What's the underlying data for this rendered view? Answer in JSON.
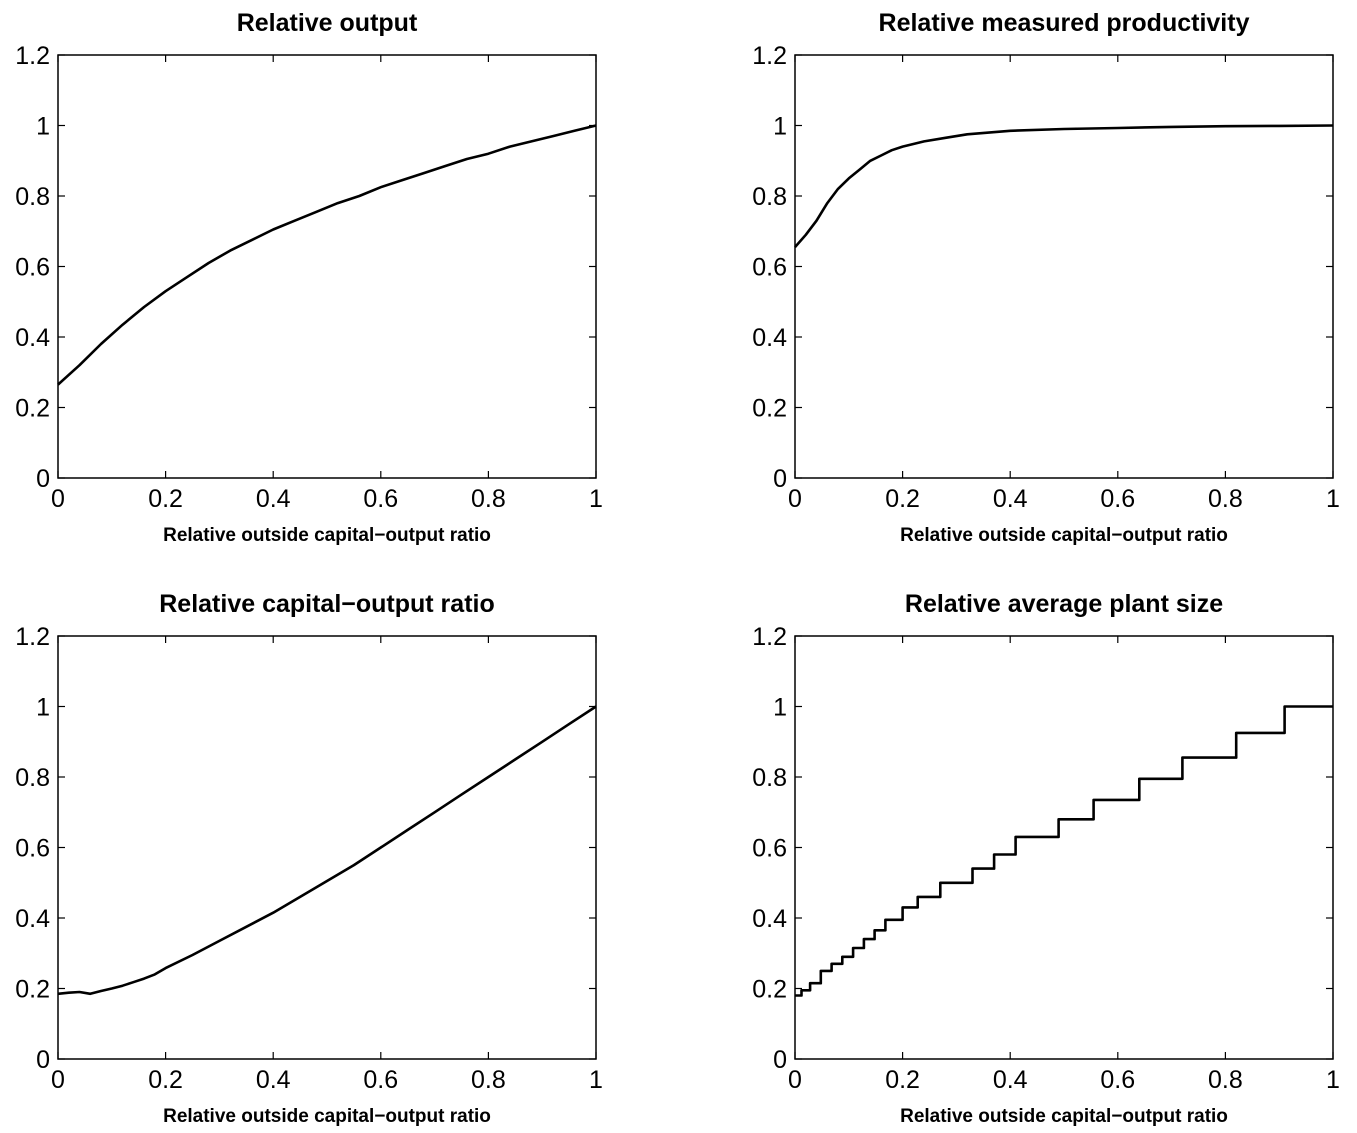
{
  "chart_data": [
    {
      "type": "line",
      "title": "Relative output",
      "xlabel": "Relative outside capital−output ratio",
      "ylabel": "",
      "xlim": [
        0,
        1
      ],
      "ylim": [
        0,
        1.2
      ],
      "xticks": [
        "0",
        "0.2",
        "0.4",
        "0.6",
        "0.8",
        "1"
      ],
      "yticks": [
        "0",
        "0.2",
        "0.4",
        "0.6",
        "0.8",
        "1",
        "1.2"
      ],
      "grid": false,
      "series": [
        {
          "x": [
            0,
            0.04,
            0.08,
            0.12,
            0.16,
            0.2,
            0.24,
            0.28,
            0.32,
            0.36,
            0.4,
            0.44,
            0.48,
            0.52,
            0.56,
            0.6,
            0.64,
            0.68,
            0.72,
            0.76,
            0.8,
            0.84,
            0.88,
            0.92,
            0.96,
            1.0
          ],
          "y": [
            0.265,
            0.32,
            0.38,
            0.435,
            0.485,
            0.53,
            0.57,
            0.61,
            0.645,
            0.675,
            0.705,
            0.73,
            0.755,
            0.78,
            0.8,
            0.825,
            0.845,
            0.865,
            0.885,
            0.905,
            0.92,
            0.94,
            0.955,
            0.97,
            0.985,
            1.0
          ]
        }
      ]
    },
    {
      "type": "line",
      "title": "Relative measured productivity",
      "xlabel": "Relative outside capital−output ratio",
      "ylabel": "",
      "xlim": [
        0,
        1
      ],
      "ylim": [
        0,
        1.2
      ],
      "xticks": [
        "0",
        "0.2",
        "0.4",
        "0.6",
        "0.8",
        "1"
      ],
      "yticks": [
        "0",
        "0.2",
        "0.4",
        "0.6",
        "0.8",
        "1",
        "1.2"
      ],
      "grid": false,
      "series": [
        {
          "x": [
            0,
            0.02,
            0.04,
            0.06,
            0.08,
            0.1,
            0.12,
            0.14,
            0.16,
            0.18,
            0.2,
            0.24,
            0.28,
            0.32,
            0.36,
            0.4,
            0.5,
            0.6,
            0.7,
            0.8,
            0.9,
            1.0
          ],
          "y": [
            0.655,
            0.69,
            0.73,
            0.78,
            0.82,
            0.85,
            0.875,
            0.9,
            0.915,
            0.93,
            0.94,
            0.955,
            0.965,
            0.975,
            0.98,
            0.985,
            0.99,
            0.993,
            0.996,
            0.998,
            0.999,
            1.0
          ]
        }
      ]
    },
    {
      "type": "line",
      "title": "Relative capital−output ratio",
      "xlabel": "Relative outside capital−output ratio",
      "ylabel": "",
      "xlim": [
        0,
        1
      ],
      "ylim": [
        0,
        1.2
      ],
      "xticks": [
        "0",
        "0.2",
        "0.4",
        "0.6",
        "0.8",
        "1"
      ],
      "yticks": [
        "0",
        "0.2",
        "0.4",
        "0.6",
        "0.8",
        "1",
        "1.2"
      ],
      "grid": false,
      "series": [
        {
          "x": [
            0,
            0.02,
            0.04,
            0.06,
            0.08,
            0.1,
            0.12,
            0.14,
            0.16,
            0.18,
            0.2,
            0.25,
            0.3,
            0.35,
            0.4,
            0.45,
            0.5,
            0.55,
            0.6,
            0.65,
            0.7,
            0.75,
            0.8,
            0.85,
            0.9,
            0.95,
            1.0
          ],
          "y": [
            0.185,
            0.188,
            0.19,
            0.185,
            0.193,
            0.2,
            0.208,
            0.218,
            0.228,
            0.24,
            0.258,
            0.295,
            0.335,
            0.375,
            0.415,
            0.46,
            0.505,
            0.55,
            0.6,
            0.65,
            0.7,
            0.75,
            0.8,
            0.85,
            0.9,
            0.95,
            1.0
          ]
        }
      ]
    },
    {
      "type": "line",
      "title": "Relative average plant size",
      "xlabel": "Relative outside capital−output ratio",
      "ylabel": "",
      "xlim": [
        0,
        1
      ],
      "ylim": [
        0,
        1.2
      ],
      "xticks": [
        "0",
        "0.2",
        "0.4",
        "0.6",
        "0.8",
        "1"
      ],
      "yticks": [
        "0",
        "0.2",
        "0.4",
        "0.6",
        "0.8",
        "1",
        "1.2"
      ],
      "grid": false,
      "step": true,
      "series": [
        {
          "x": [
            0,
            0.012,
            0.028,
            0.048,
            0.068,
            0.088,
            0.108,
            0.128,
            0.148,
            0.168,
            0.2,
            0.228,
            0.27,
            0.33,
            0.37,
            0.41,
            0.49,
            0.555,
            0.64,
            0.72,
            0.82,
            0.91
          ],
          "y": [
            0.18,
            0.195,
            0.215,
            0.25,
            0.27,
            0.29,
            0.315,
            0.34,
            0.365,
            0.395,
            0.43,
            0.46,
            0.5,
            0.54,
            0.58,
            0.63,
            0.68,
            0.735,
            0.795,
            0.855,
            0.925,
            1.0
          ],
          "x_end": 1.0
        }
      ]
    }
  ]
}
